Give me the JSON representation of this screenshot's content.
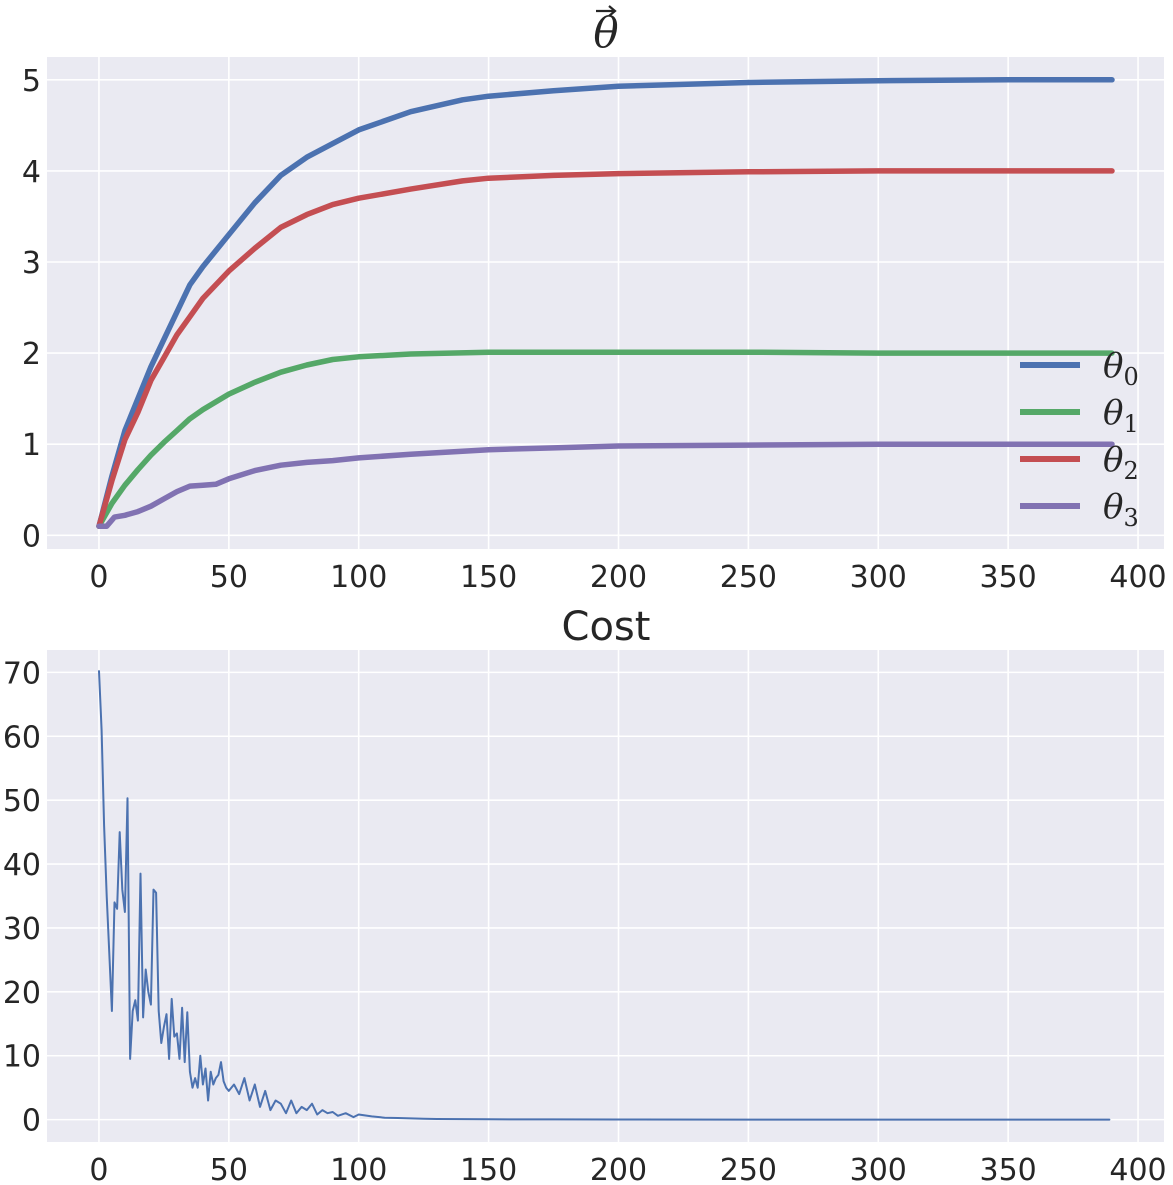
{
  "chart_data": [
    {
      "type": "line",
      "title": "θ⃗",
      "xlabel": "",
      "ylabel": "",
      "xlim": [
        -20,
        410
      ],
      "ylim": [
        -0.15,
        5.25
      ],
      "xticks": [
        0,
        50,
        100,
        150,
        200,
        250,
        300,
        350,
        400
      ],
      "yticks": [
        0,
        1,
        2,
        3,
        4,
        5
      ],
      "xtick_labels": [
        "0",
        "50",
        "100",
        "150",
        "200",
        "250",
        "300",
        "350",
        "400"
      ],
      "ytick_labels": [
        "0",
        "1",
        "2",
        "3",
        "4",
        "5"
      ],
      "grid": true,
      "legend_placement": "lower-right",
      "series": [
        {
          "name": "θ0",
          "color": "#4C72B0",
          "x": [
            0,
            5,
            10,
            15,
            20,
            25,
            30,
            35,
            40,
            50,
            60,
            70,
            80,
            90,
            100,
            120,
            140,
            150,
            175,
            200,
            250,
            300,
            350,
            390
          ],
          "y": [
            0.1,
            0.65,
            1.15,
            1.5,
            1.85,
            2.15,
            2.45,
            2.75,
            2.95,
            3.3,
            3.65,
            3.95,
            4.15,
            4.3,
            4.45,
            4.65,
            4.78,
            4.82,
            4.88,
            4.93,
            4.97,
            4.99,
            5.0,
            5.0
          ]
        },
        {
          "name": "θ1",
          "color": "#55A868",
          "x": [
            0,
            5,
            10,
            15,
            20,
            25,
            30,
            35,
            40,
            50,
            60,
            70,
            80,
            90,
            100,
            120,
            150,
            175,
            200,
            250,
            300,
            350,
            390
          ],
          "y": [
            0.1,
            0.35,
            0.55,
            0.72,
            0.88,
            1.02,
            1.15,
            1.28,
            1.38,
            1.55,
            1.68,
            1.79,
            1.87,
            1.93,
            1.96,
            1.99,
            2.01,
            2.01,
            2.01,
            2.01,
            2.0,
            2.0,
            2.0
          ]
        },
        {
          "name": "θ2",
          "color": "#C44E52",
          "x": [
            0,
            5,
            10,
            15,
            20,
            25,
            30,
            35,
            40,
            50,
            60,
            70,
            80,
            90,
            100,
            120,
            140,
            150,
            175,
            200,
            250,
            300,
            350,
            390
          ],
          "y": [
            0.1,
            0.6,
            1.05,
            1.35,
            1.7,
            1.95,
            2.2,
            2.4,
            2.6,
            2.9,
            3.15,
            3.38,
            3.52,
            3.63,
            3.7,
            3.8,
            3.89,
            3.92,
            3.95,
            3.97,
            3.99,
            4.0,
            4.0,
            4.0
          ]
        },
        {
          "name": "θ3",
          "color": "#8172B2",
          "x": [
            0,
            3,
            6,
            10,
            15,
            20,
            25,
            30,
            35,
            40,
            45,
            50,
            60,
            70,
            80,
            90,
            100,
            120,
            150,
            175,
            200,
            250,
            300,
            350,
            390
          ],
          "y": [
            0.1,
            0.1,
            0.2,
            0.22,
            0.26,
            0.32,
            0.4,
            0.48,
            0.54,
            0.55,
            0.56,
            0.62,
            0.71,
            0.77,
            0.8,
            0.82,
            0.85,
            0.89,
            0.94,
            0.96,
            0.98,
            0.99,
            1.0,
            1.0,
            1.0
          ]
        }
      ]
    },
    {
      "type": "line",
      "title": "Cost",
      "xlabel": "",
      "ylabel": "",
      "xlim": [
        -20,
        410
      ],
      "ylim": [
        -3.5,
        73.5
      ],
      "xticks": [
        0,
        50,
        100,
        150,
        200,
        250,
        300,
        350,
        400
      ],
      "yticks": [
        0,
        10,
        20,
        30,
        40,
        50,
        60,
        70
      ],
      "xtick_labels": [
        "0",
        "50",
        "100",
        "150",
        "200",
        "250",
        "300",
        "350",
        "400"
      ],
      "ytick_labels": [
        "0",
        "10",
        "20",
        "30",
        "40",
        "50",
        "60",
        "70"
      ],
      "grid": true,
      "series": [
        {
          "color": "#4C72B0",
          "x": [
            0,
            1,
            2,
            3,
            5,
            6,
            7,
            8,
            9,
            10,
            11,
            12,
            13,
            14,
            15,
            16,
            17,
            18,
            19,
            20,
            21,
            22,
            23,
            24,
            25,
            26,
            27,
            28,
            29,
            30,
            31,
            32,
            33,
            34,
            35,
            36,
            37,
            38,
            39,
            40,
            41,
            42,
            43,
            44,
            45,
            46,
            47,
            48,
            49,
            50,
            52,
            54,
            56,
            58,
            60,
            62,
            64,
            66,
            68,
            70,
            72,
            74,
            76,
            78,
            80,
            82,
            84,
            86,
            88,
            90,
            92,
            95,
            98,
            100,
            105,
            110,
            115,
            120,
            125,
            130,
            140,
            150,
            175,
            200,
            250,
            300,
            350,
            389
          ],
          "y": [
            70.2,
            61.0,
            46.0,
            35.0,
            17.0,
            34.0,
            33.0,
            45.0,
            36.0,
            32.5,
            50.3,
            9.5,
            17.0,
            18.7,
            15.5,
            38.5,
            16.0,
            23.5,
            20.0,
            18.0,
            36.0,
            35.5,
            17.0,
            12.0,
            14.5,
            16.5,
            9.5,
            18.9,
            13.0,
            13.5,
            9.5,
            17.5,
            9.0,
            16.8,
            7.5,
            5.0,
            6.5,
            5.0,
            10.0,
            5.5,
            8.0,
            3.0,
            7.5,
            5.5,
            6.5,
            7.0,
            9.0,
            6.0,
            5.0,
            4.5,
            5.5,
            4.0,
            6.5,
            3.0,
            5.5,
            2.0,
            4.5,
            1.5,
            3.0,
            2.5,
            1.0,
            3.0,
            1.0,
            2.0,
            1.5,
            2.5,
            0.8,
            1.5,
            1.0,
            1.2,
            0.6,
            1.0,
            0.4,
            0.8,
            0.5,
            0.3,
            0.25,
            0.2,
            0.15,
            0.1,
            0.08,
            0.05,
            0.03,
            0.02,
            0.01,
            0.01,
            0.01,
            0.01
          ]
        }
      ]
    }
  ]
}
